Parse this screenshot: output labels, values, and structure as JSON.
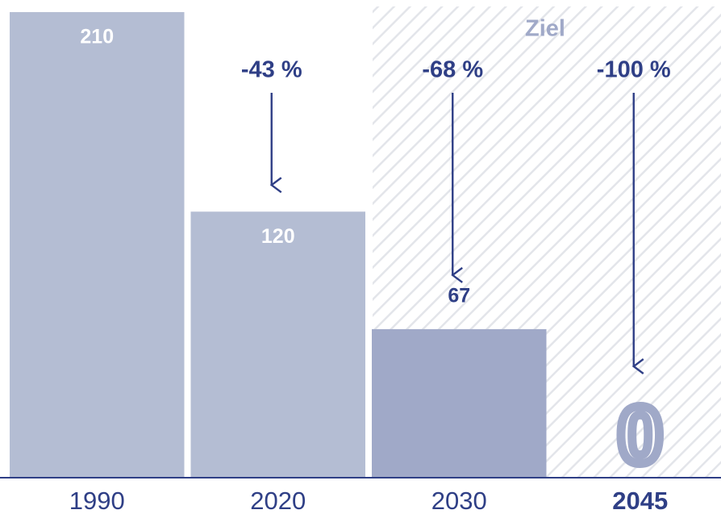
{
  "chart_data": {
    "type": "bar",
    "categories": [
      "1990",
      "2020",
      "2030",
      "2045"
    ],
    "values": [
      210,
      120,
      67,
      0
    ],
    "colors": [
      "#b4bdd3",
      "#b4bdd3",
      "#a0a9c8",
      "#a0a9c8"
    ],
    "ylim": [
      0,
      210
    ],
    "annotations": [
      "-43 %",
      "-68 %",
      "-100 %"
    ],
    "target_label": "Ziel"
  }
}
